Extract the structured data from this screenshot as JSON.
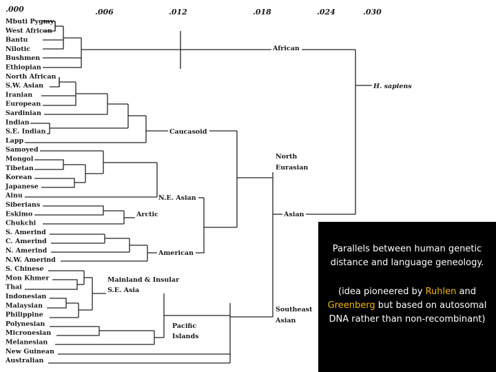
{
  "axis_labels": [
    ".000",
    ".006",
    ".012",
    ".018",
    ".024",
    ".030"
  ],
  "leaves": [
    "Mbuti Pygmy",
    "West African",
    "Bantu",
    "Nilotic",
    "Bushmen",
    "Ethiopian",
    "North African",
    "S.W. Asian",
    "Iranian",
    "European",
    "Sardinian",
    "Indian",
    "S.E. Indian",
    "Lapp",
    "Samoyed",
    "Mongol",
    "Tibetan",
    "Korean",
    "Japanese",
    "Ainu",
    "Siberians",
    "Eskimo",
    "Chukchi",
    "S. Amerind",
    "C. Amerind",
    "N. Amerind",
    "N.W. Amerind",
    "S. Chinese",
    "Mon Khmer",
    "Thai",
    "Indonesian",
    "Malaysian",
    "Philippine",
    "Polynesian",
    "Micronesian",
    "Melanesian",
    "New Guinean",
    "Australian"
  ],
  "clades": {
    "african": "African",
    "sapiens": "H. sapiens",
    "caucasoid": "Caucasoid",
    "north": "North",
    "eurasian": "Eurasian",
    "ne_asian": "N.E. Asian",
    "arctic": "Arctic",
    "asian": "Asian",
    "american": "American",
    "mainland1": "Mainland & Insular",
    "mainland2": "S.E. Asia",
    "southeast": "Southeast",
    "southeast_asian": "Asian",
    "pacific": "Pacific",
    "islands": "Islands"
  },
  "caption": {
    "main": "Parallels between human genetic distance and language geneology.",
    "note_pre": "(idea pioneered by ",
    "note_hl1": "Ruhlen",
    "note_mid": " and ",
    "note_hl2": "Greenberg",
    "note_post": " but based on autosomal DNA rather than non-recombinant)"
  },
  "colors": {
    "caption_bg": "#000000",
    "caption_text": "#ffffff",
    "highlight": "#f5b800"
  }
}
